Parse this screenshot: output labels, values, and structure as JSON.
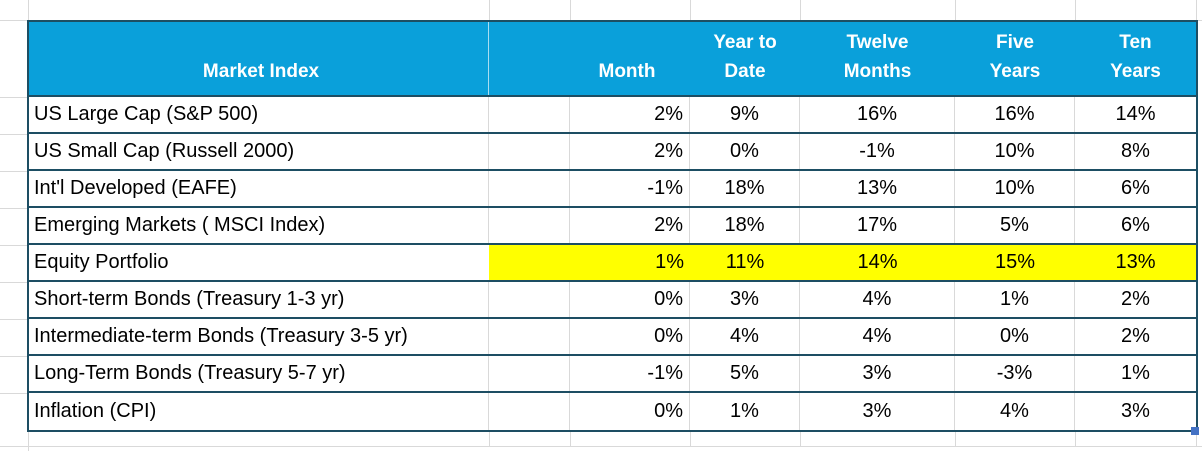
{
  "table": {
    "header": {
      "market_index": "Market Index",
      "columns": [
        "Month",
        "Year to\nDate",
        "Twelve\nMonths",
        "Five\nYears",
        "Ten\nYears"
      ]
    },
    "rows": [
      {
        "label": "US Large Cap (S&P 500)",
        "values": [
          "2%",
          "9%",
          "16%",
          "16%",
          "14%"
        ],
        "highlight": false
      },
      {
        "label": "US Small Cap (Russell 2000)",
        "values": [
          "2%",
          "0%",
          "-1%",
          "10%",
          "8%"
        ],
        "highlight": false
      },
      {
        "label": "Int'l Developed (EAFE)",
        "values": [
          "-1%",
          "18%",
          "13%",
          "10%",
          "6%"
        ],
        "highlight": false
      },
      {
        "label": "Emerging Markets ( MSCI Index)",
        "values": [
          "2%",
          "18%",
          "17%",
          "5%",
          "6%"
        ],
        "highlight": false
      },
      {
        "label": "Equity Portfolio",
        "values": [
          "1%",
          "11%",
          "14%",
          "15%",
          "13%"
        ],
        "highlight": true
      },
      {
        "label": "Short-term Bonds (Treasury 1-3 yr)",
        "values": [
          "0%",
          "3%",
          "4%",
          "1%",
          "2%"
        ],
        "highlight": false
      },
      {
        "label": "Intermediate-term Bonds (Treasury 3-5 yr)",
        "values": [
          "0%",
          "4%",
          "4%",
          "0%",
          "2%"
        ],
        "highlight": false
      },
      {
        "label": "Long-Term Bonds (Treasury 5-7 yr)",
        "values": [
          "-1%",
          "5%",
          "3%",
          "-3%",
          "1%"
        ],
        "highlight": false
      },
      {
        "label": "Inflation (CPI)",
        "values": [
          "0%",
          "1%",
          "3%",
          "4%",
          "3%"
        ],
        "highlight": false
      }
    ],
    "colors": {
      "header_bg": "#0aa0da",
      "header_text": "#ffffff",
      "row_border": "#1d4e63",
      "highlight_bg": "#ffff00",
      "gridline": "#d9d9d9",
      "fill_handle": "#4472c4"
    }
  }
}
